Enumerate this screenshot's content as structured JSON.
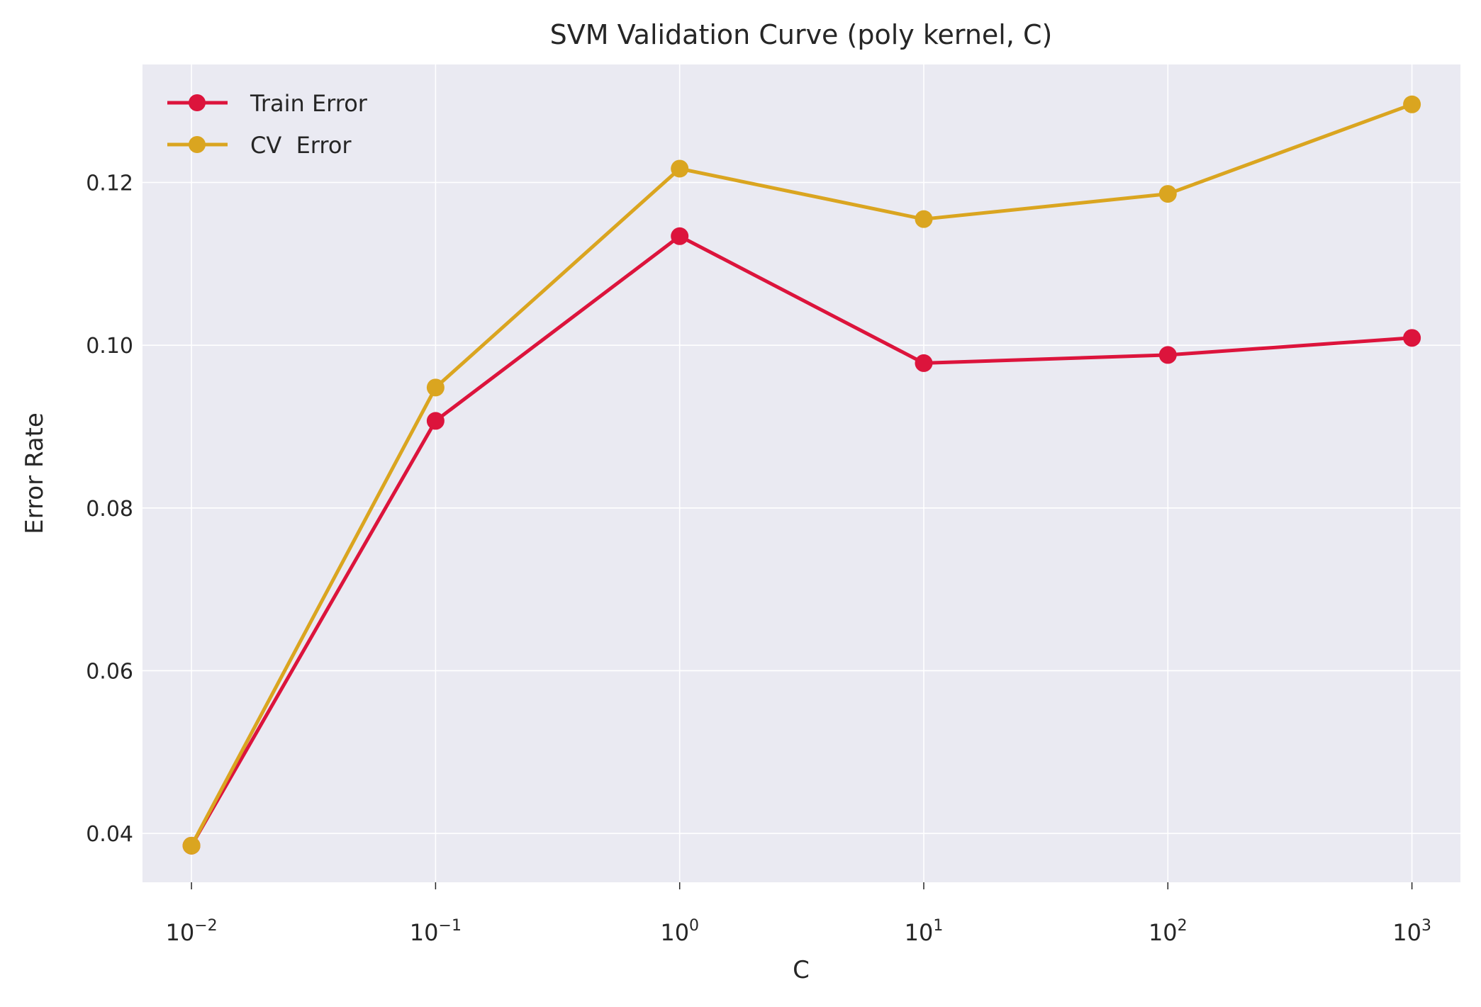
{
  "chart_data": {
    "type": "line",
    "title": "SVM Validation Curve (poly kernel, C)",
    "xlabel": "C",
    "ylabel": "Error Rate",
    "x_scale": "log",
    "x": [
      0.01,
      0.1,
      1,
      10,
      100,
      1000
    ],
    "x_tick_labels": [
      {
        "base": "10",
        "exp": "−2"
      },
      {
        "base": "10",
        "exp": "−1"
      },
      {
        "base": "10",
        "exp": "0"
      },
      {
        "base": "10",
        "exp": "1"
      },
      {
        "base": "10",
        "exp": "2"
      },
      {
        "base": "10",
        "exp": "3"
      }
    ],
    "y_ticks": [
      "0.04",
      "0.06",
      "0.08",
      "0.10",
      "0.12"
    ],
    "xlim": [
      0.0063,
      1580
    ],
    "ylim": [
      0.034,
      0.1345
    ],
    "grid": true,
    "legend_position": "top-left",
    "series": [
      {
        "name": "Train Error",
        "color": "#dc143c",
        "values": [
          0.0385,
          0.0907,
          0.1134,
          0.0978,
          0.0988,
          0.1009
        ]
      },
      {
        "name": "CV  Error",
        "color": "#daa520",
        "values": [
          0.0385,
          0.0948,
          0.1217,
          0.1155,
          0.1186,
          0.1296
        ]
      }
    ]
  },
  "colors": {
    "plot_background": "#eaeaf2",
    "grid": "#ffffff",
    "text": "#262626"
  }
}
